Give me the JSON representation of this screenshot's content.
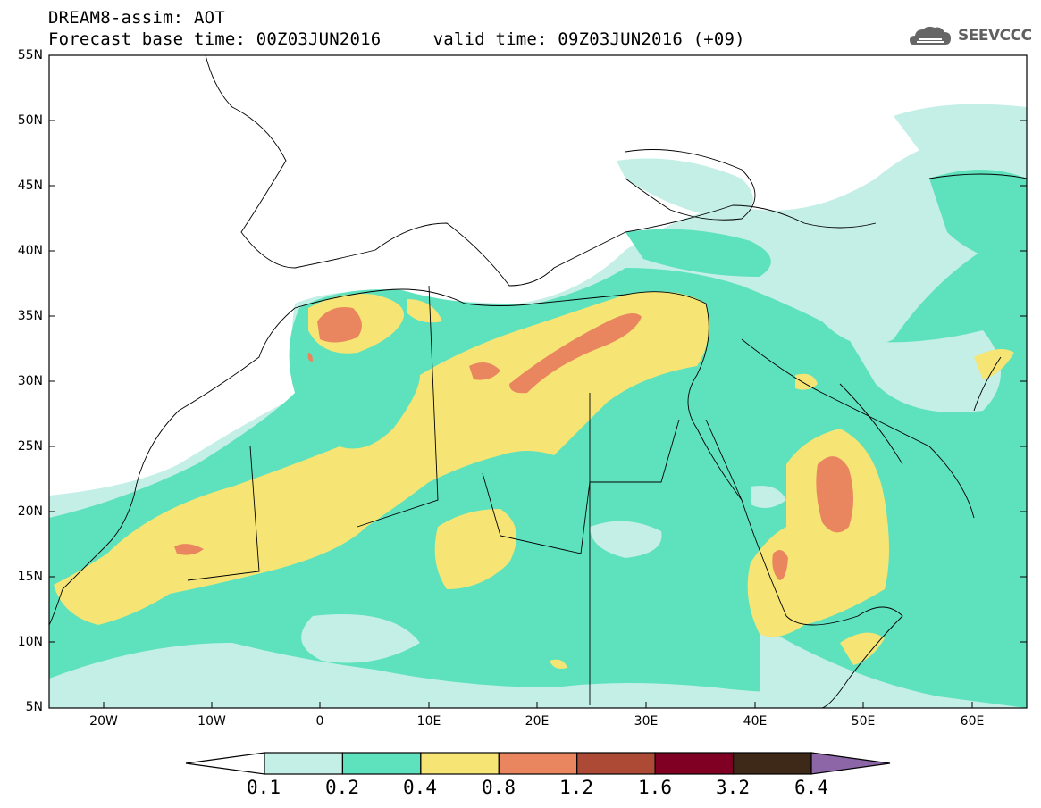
{
  "header": {
    "title_line1": "DREAM8-assim: AOT",
    "title_line2": "Forecast base time: 00Z03JUN2016     valid time: 09Z03JUN2016 (+09)"
  },
  "logo": {
    "text": "SEEVCCC",
    "icon": "cloud-icon"
  },
  "map": {
    "lat_ticks": [
      "55N",
      "50N",
      "45N",
      "40N",
      "35N",
      "30N",
      "25N",
      "20N",
      "15N",
      "10N",
      "5N"
    ],
    "lon_ticks": [
      "20W",
      "10W",
      "0",
      "10E",
      "20E",
      "30E",
      "40E",
      "50E",
      "60E"
    ],
    "lat_range": [
      5,
      55
    ],
    "lon_range": [
      -25,
      65
    ]
  },
  "colorbar": {
    "labels": [
      "0.1",
      "0.2",
      "0.4",
      "0.8",
      "1.2",
      "1.6",
      "3.2",
      "6.4"
    ],
    "colors": [
      "#ffffff",
      "#c3efe6",
      "#5ee2bd",
      "#f6e574",
      "#e98660",
      "#ad4a35",
      "#800024",
      "#3e2919",
      "#8c66a6"
    ]
  }
}
